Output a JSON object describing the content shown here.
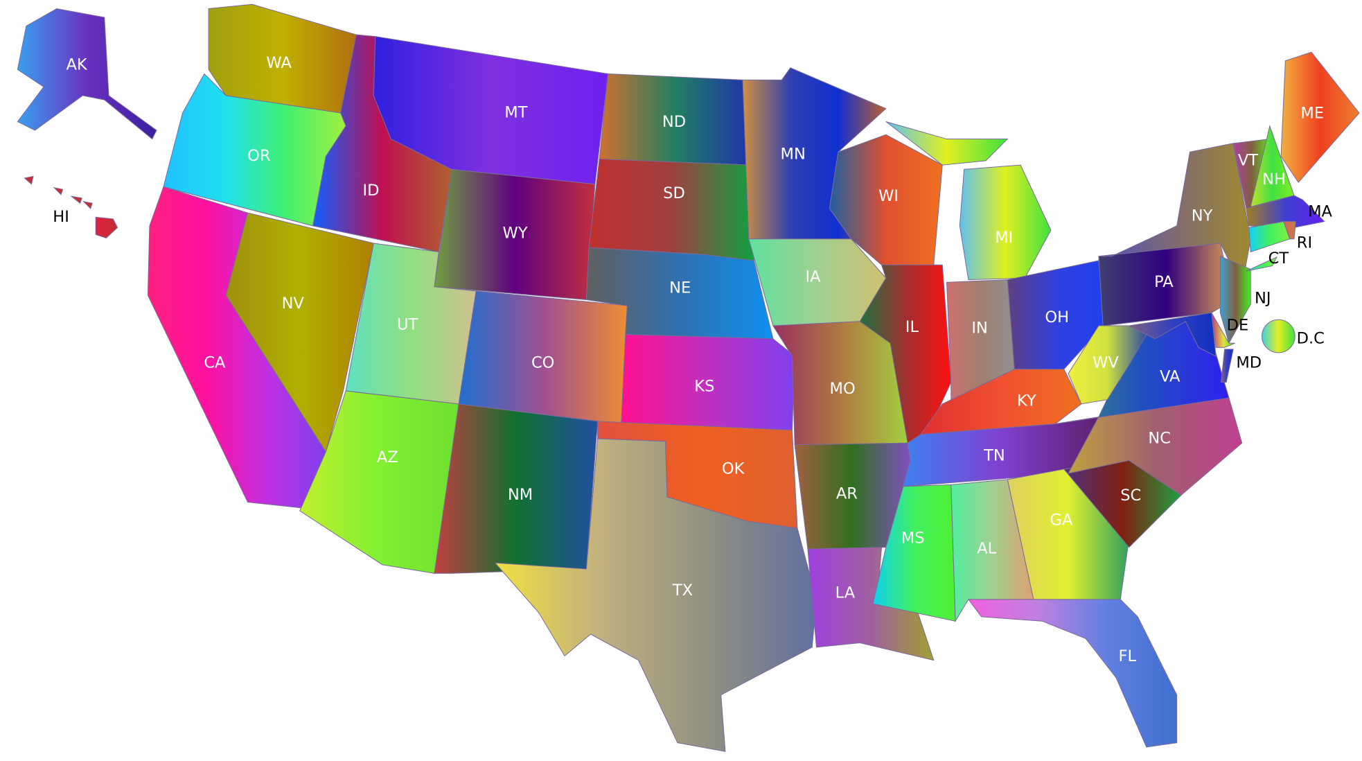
{
  "map": {
    "states": [
      {
        "abbr": "AK",
        "colors": [
          "#3aa0f0",
          "#6a30c0",
          "#3a20a0"
        ],
        "label_color": "#ffffff"
      },
      {
        "abbr": "HI",
        "colors": [
          "#e02040",
          "#c03030"
        ],
        "label_color": "#000000"
      },
      {
        "abbr": "WA",
        "colors": [
          "#a0a010",
          "#c0b000",
          "#b07010"
        ],
        "label_color": "#ffffff"
      },
      {
        "abbr": "OR",
        "colors": [
          "#20c0ff",
          "#20e0f0",
          "#40f070",
          "#a0f040"
        ],
        "label_color": "#ffffff"
      },
      {
        "abbr": "CA",
        "colors": [
          "#ff2080",
          "#ff10a0",
          "#c030e0",
          "#8040f0"
        ],
        "label_color": "#ffffff"
      },
      {
        "abbr": "NV",
        "colors": [
          "#a09010",
          "#b0b000",
          "#b08000"
        ],
        "label_color": "#ffffff"
      },
      {
        "abbr": "ID",
        "colors": [
          "#1060ff",
          "#c01050",
          "#b06030"
        ],
        "label_color": "#ffffff"
      },
      {
        "abbr": "MT",
        "colors": [
          "#3020e0",
          "#8030e0",
          "#7020f0"
        ],
        "label_color": "#ffffff"
      },
      {
        "abbr": "WY",
        "colors": [
          "#70a040",
          "#600080",
          "#c03040"
        ],
        "label_color": "#ffffff"
      },
      {
        "abbr": "UT",
        "colors": [
          "#60e0c0",
          "#90e080",
          "#d0c090"
        ],
        "label_color": "#ffffff"
      },
      {
        "abbr": "CO",
        "colors": [
          "#2070d0",
          "#a05090",
          "#f09030"
        ],
        "label_color": "#ffffff"
      },
      {
        "abbr": "AZ",
        "colors": [
          "#c0f030",
          "#80f030",
          "#70e030"
        ],
        "label_color": "#ffffff"
      },
      {
        "abbr": "NM",
        "colors": [
          "#c04040",
          "#107030",
          "#2050a0"
        ],
        "label_color": "#ffffff"
      },
      {
        "abbr": "ND",
        "colors": [
          "#d07030",
          "#208060",
          "#2030b0"
        ],
        "label_color": "#ffffff"
      },
      {
        "abbr": "SD",
        "colors": [
          "#c03030",
          "#a04040",
          "#10a040"
        ],
        "label_color": "#ffffff"
      },
      {
        "abbr": "NE",
        "colors": [
          "#606060",
          "#3070b0",
          "#1090f0"
        ],
        "label_color": "#ffffff"
      },
      {
        "abbr": "KS",
        "colors": [
          "#ff1090",
          "#c030c0",
          "#8040f0"
        ],
        "label_color": "#ffffff"
      },
      {
        "abbr": "OK",
        "colors": [
          "#e05040",
          "#f06020",
          "#e06030"
        ],
        "label_color": "#ffffff"
      },
      {
        "abbr": "TX",
        "colors": [
          "#f0e040",
          "#c0b080",
          "#909080",
          "#6070a0"
        ],
        "label_color": "#ffffff"
      },
      {
        "abbr": "MN",
        "colors": [
          "#d09040",
          "#3040b0",
          "#1030d0",
          "#c06030"
        ],
        "label_color": "#ffffff"
      },
      {
        "abbr": "IA",
        "colors": [
          "#60e0a0",
          "#a0d090",
          "#d0c070"
        ],
        "label_color": "#ffffff"
      },
      {
        "abbr": "MO",
        "colors": [
          "#9a3060",
          "#b08040",
          "#a0e040"
        ],
        "label_color": "#ffffff"
      },
      {
        "abbr": "WI",
        "colors": [
          "#2060a0",
          "#e05030",
          "#f07020"
        ],
        "label_color": "#ffffff"
      },
      {
        "abbr": "IL",
        "colors": [
          "#207040",
          "#a03030",
          "#ff1010"
        ],
        "label_color": "#ffffff"
      },
      {
        "abbr": "MI",
        "colors": [
          "#60c0f0",
          "#e0f020",
          "#40e040"
        ],
        "label_color": "#ffffff"
      },
      {
        "abbr": "IN",
        "colors": [
          "#d07070",
          "#a08070",
          "#909090"
        ],
        "label_color": "#ffffff"
      },
      {
        "abbr": "OH",
        "colors": [
          "#604080",
          "#3040e0",
          "#2040f0"
        ],
        "label_color": "#ffffff"
      },
      {
        "abbr": "KY",
        "colors": [
          "#e03030",
          "#f05030",
          "#f07020"
        ],
        "label_color": "#ffffff"
      },
      {
        "abbr": "TN",
        "colors": [
          "#4080f0",
          "#8040d0",
          "#602070"
        ],
        "label_color": "#ffffff"
      },
      {
        "abbr": "AR",
        "colors": [
          "#a06040",
          "#307020",
          "#8050c0"
        ],
        "label_color": "#ffffff"
      },
      {
        "abbr": "LA",
        "colors": [
          "#a040e0",
          "#a060a0",
          "#a0a030"
        ],
        "label_color": "#ffffff"
      },
      {
        "abbr": "MS",
        "colors": [
          "#10d0f0",
          "#40f060",
          "#50f030"
        ],
        "label_color": "#ffffff"
      },
      {
        "abbr": "AL",
        "colors": [
          "#50f0a0",
          "#a0d090",
          "#e0a070"
        ],
        "label_color": "#ffffff"
      },
      {
        "abbr": "GA",
        "colors": [
          "#e0d060",
          "#e0f030",
          "#30a060"
        ],
        "label_color": "#ffffff"
      },
      {
        "abbr": "FL",
        "colors": [
          "#f060e0",
          "#c080e0",
          "#6080e0",
          "#4070d0"
        ],
        "label_color": "#ffffff"
      },
      {
        "abbr": "SC",
        "colors": [
          "#503080",
          "#802010",
          "#20a040"
        ],
        "label_color": "#ffffff"
      },
      {
        "abbr": "NC",
        "colors": [
          "#c0a040",
          "#a06070",
          "#c04090"
        ],
        "label_color": "#ffffff"
      },
      {
        "abbr": "VA",
        "colors": [
          "#409070",
          "#2050c0",
          "#3020f0"
        ],
        "label_color": "#ffffff"
      },
      {
        "abbr": "WV",
        "colors": [
          "#f0f040",
          "#d0e040",
          "#3050a0"
        ],
        "label_color": "#ffffff"
      },
      {
        "abbr": "PA",
        "colors": [
          "#404070",
          "#300080",
          "#e0a050"
        ],
        "label_color": "#ffffff"
      },
      {
        "abbr": "NY",
        "colors": [
          "#5050c0",
          "#806a70",
          "#a08a30"
        ],
        "label_color": "#ffffff"
      },
      {
        "abbr": "NJ",
        "colors": [
          "#40a0d0",
          "#806040",
          "#40f020"
        ],
        "label_color": "#000000"
      },
      {
        "abbr": "DE",
        "colors": [
          "#c03080",
          "#e0e040",
          "#40e020"
        ],
        "label_color": "#000000"
      },
      {
        "abbr": "MD",
        "colors": [
          "#806080",
          "#3040c0",
          "#1030c0"
        ],
        "label_color": "#000000"
      },
      {
        "abbr": "VT",
        "colors": [
          "#b040a0",
          "#806040",
          "#60e020"
        ],
        "label_color": "#ffffff"
      },
      {
        "abbr": "NH",
        "colors": [
          "#c0e030",
          "#40e040",
          "#80f020"
        ],
        "label_color": "#ffffff"
      },
      {
        "abbr": "ME",
        "colors": [
          "#f0b040",
          "#f04020",
          "#f08030"
        ],
        "label_color": "#ffffff"
      },
      {
        "abbr": "MA",
        "colors": [
          "#a08020",
          "#4040d0",
          "#6020f0"
        ],
        "label_color": "#000000"
      },
      {
        "abbr": "CT",
        "colors": [
          "#10d0ff",
          "#40f060",
          "#80f040"
        ],
        "label_color": "#000000"
      },
      {
        "abbr": "RI",
        "colors": [
          "#e06060",
          "#c08040"
        ],
        "label_color": "#000000"
      },
      {
        "abbr": "D.C",
        "colors": [
          "#40d0e0",
          "#e0f020",
          "#40e040"
        ],
        "label_color": "#000000"
      }
    ]
  }
}
